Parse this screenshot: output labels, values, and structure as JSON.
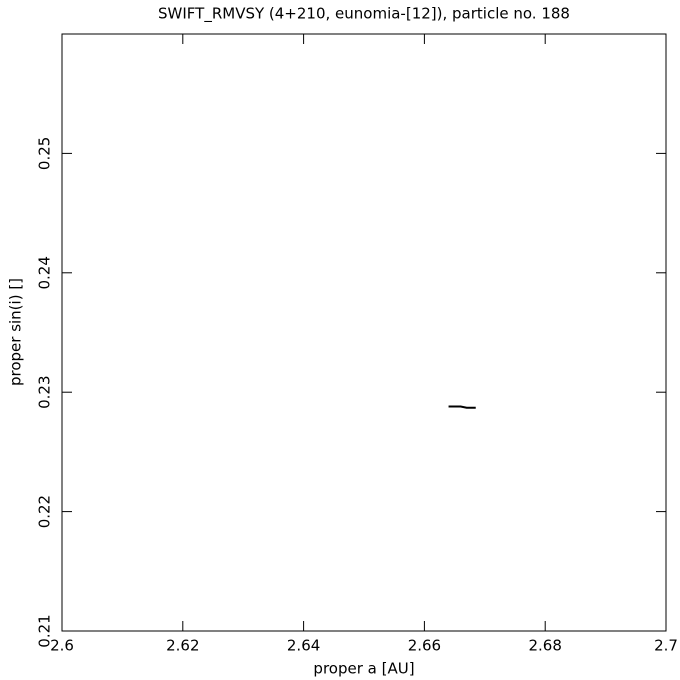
{
  "chart_data": {
    "type": "line",
    "title": "SWIFT_RMVSY (4+210, eunomia-[12]), particle no. 188",
    "x_label": "proper a [AU]",
    "y_label": "proper sin(i) []",
    "x": [
      2.664,
      2.665,
      2.666,
      2.667,
      2.668,
      2.6685
    ],
    "series": [
      {
        "color": "#000000",
        "values": [
          0.2288,
          0.2288,
          0.2288,
          0.2287,
          0.2287,
          0.2287
        ]
      }
    ],
    "xlim": [
      2.6,
      2.7
    ],
    "xticks": [
      2.6,
      2.62,
      2.64,
      2.66,
      2.68,
      2.7
    ],
    "ylim": [
      0.21,
      0.26
    ],
    "yticks": [
      0.21,
      0.22,
      0.23,
      0.24,
      0.25
    ]
  }
}
